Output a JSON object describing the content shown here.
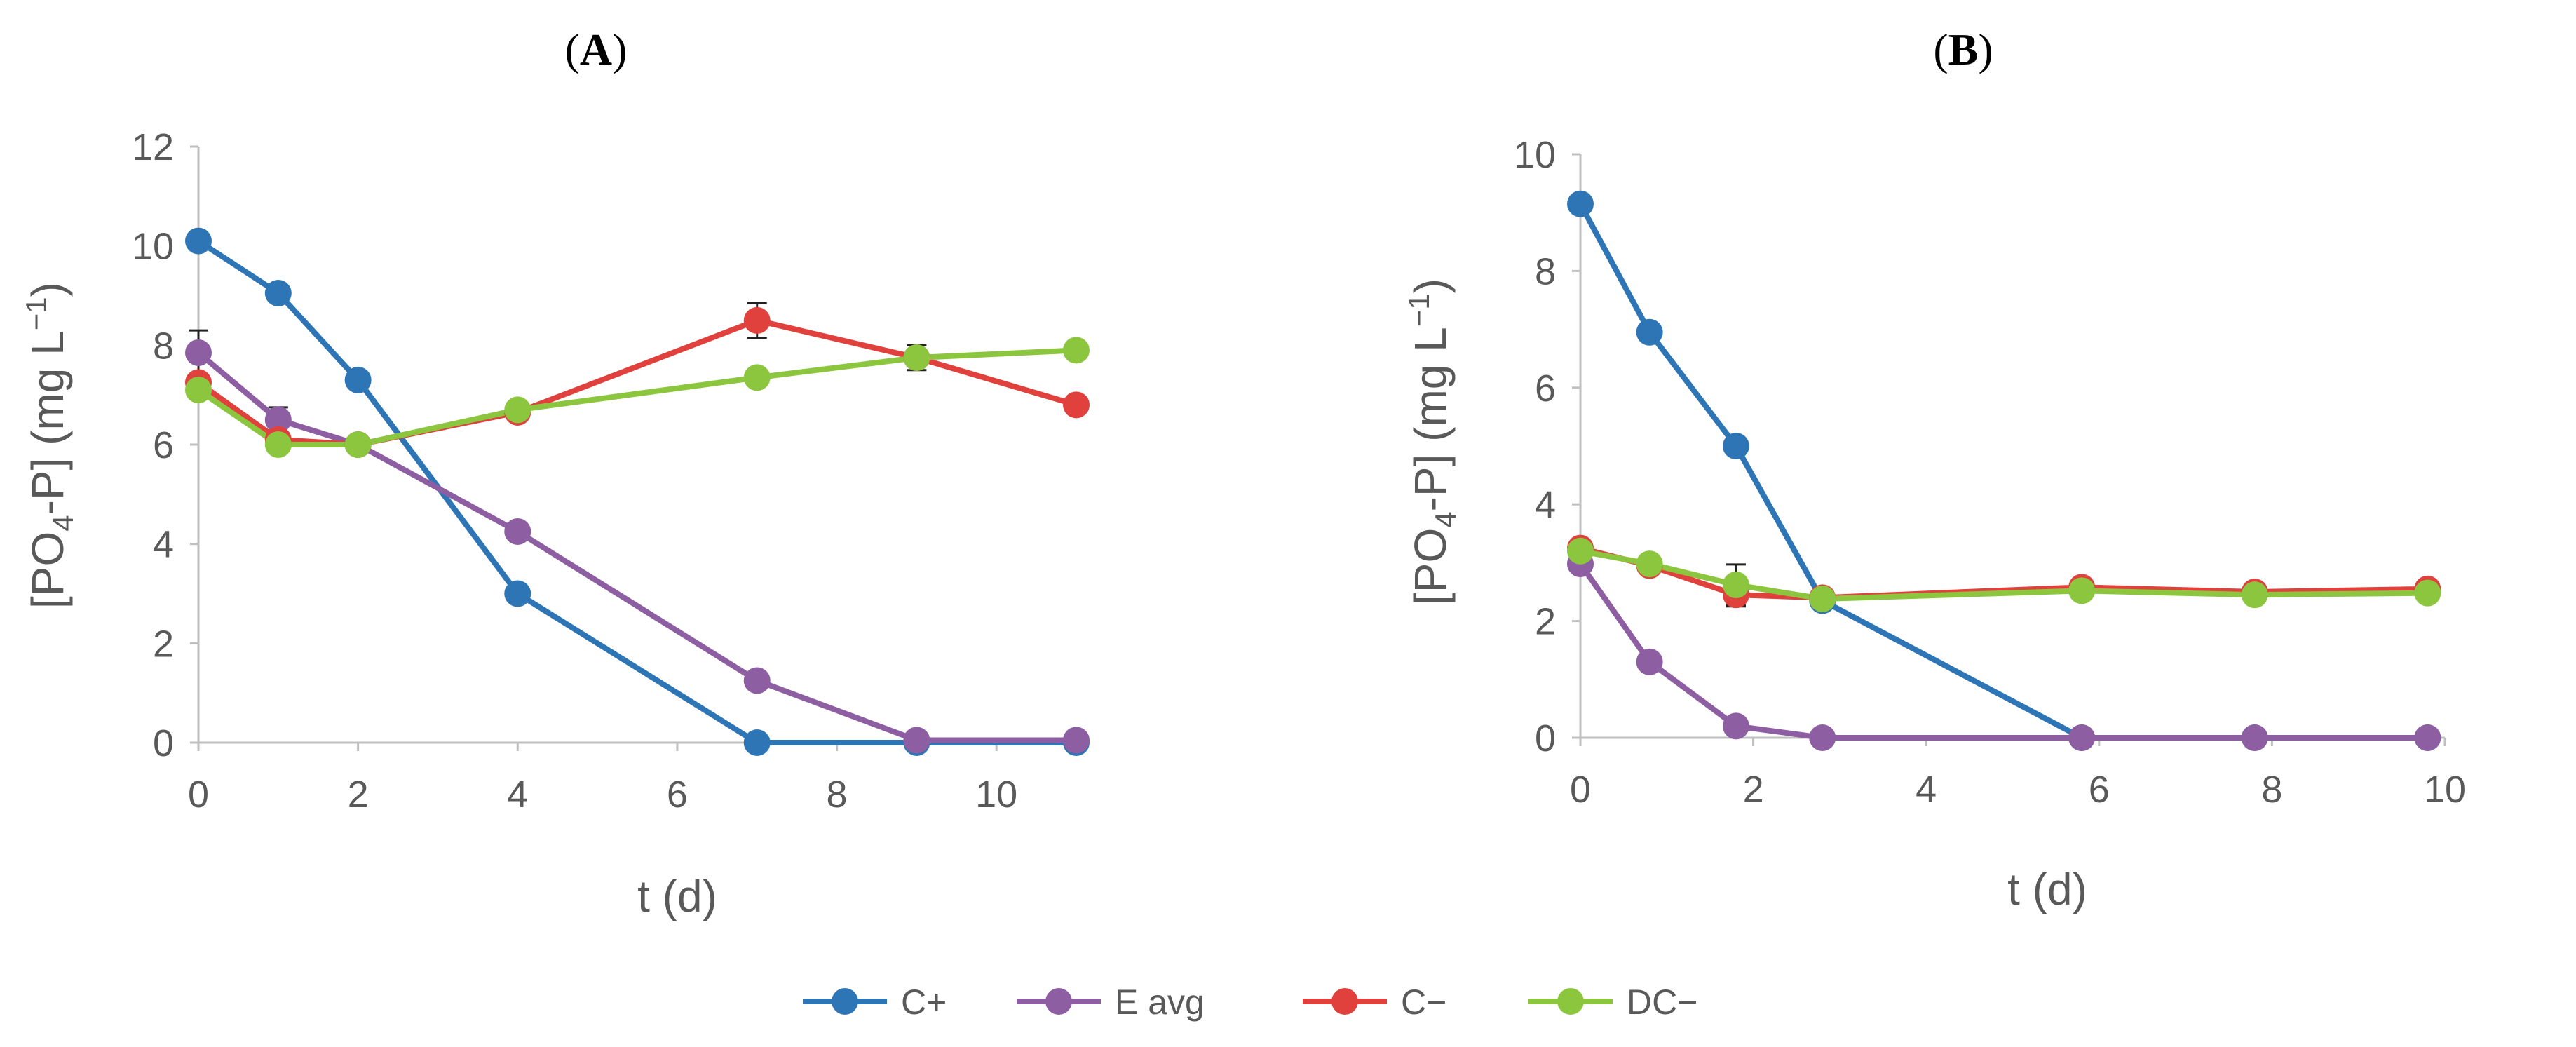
{
  "figure": {
    "legend": [
      {
        "key": "c_plus",
        "label": "C+",
        "color": "#2E75B6"
      },
      {
        "key": "e_avg",
        "label": "E avg",
        "color": "#8E5EA2"
      },
      {
        "key": "c_minus",
        "label": "C−",
        "color": "#E0413C"
      },
      {
        "key": "dc_minus",
        "label": "DC−",
        "color": "#8CC63F"
      }
    ]
  },
  "chart_data": [
    {
      "type": "line",
      "panel_label": "A",
      "title": "(A)",
      "xlabel": "t (d)",
      "ylabel_main": "[PO",
      "ylabel_sub": "4",
      "ylabel_rest": "-P] (mg L",
      "ylabel_sup": "−1",
      "ylabel_end": ")",
      "xlim": [
        0,
        11
      ],
      "ylim": [
        0,
        12
      ],
      "xticks": [
        0,
        2,
        4,
        6,
        8,
        10
      ],
      "yticks": [
        0,
        2,
        4,
        6,
        8,
        10,
        12
      ],
      "grid": false,
      "series": [
        {
          "key": "c_plus",
          "name": "C+",
          "color": "#2E75B6",
          "x": [
            0,
            1,
            2,
            4,
            7,
            9,
            11
          ],
          "y": [
            10.1,
            9.05,
            7.3,
            3.0,
            0.0,
            0.0,
            0.0
          ],
          "err": [
            0.1,
            0.1,
            0,
            0,
            0,
            0,
            0
          ]
        },
        {
          "key": "e_avg",
          "name": "E avg",
          "color": "#8E5EA2",
          "x": [
            0,
            1,
            2,
            4,
            7,
            9,
            11
          ],
          "y": [
            7.85,
            6.5,
            6.0,
            4.25,
            1.25,
            0.05,
            0.05
          ],
          "err": [
            0.45,
            0.25,
            0,
            0,
            0,
            0,
            0
          ]
        },
        {
          "key": "c_minus",
          "name": "C−",
          "color": "#E0413C",
          "x": [
            0,
            1,
            2,
            4,
            7,
            9,
            11
          ],
          "y": [
            7.25,
            6.1,
            6.0,
            6.65,
            8.5,
            7.75,
            6.8
          ],
          "err": [
            0,
            0,
            0,
            0,
            0.35,
            0.25,
            0
          ]
        },
        {
          "key": "dc_minus",
          "name": "DC−",
          "color": "#8CC63F",
          "x": [
            0,
            1,
            2,
            4,
            7,
            9,
            11
          ],
          "y": [
            7.1,
            6.0,
            6.0,
            6.7,
            7.35,
            7.75,
            7.9
          ],
          "err": [
            0,
            0,
            0,
            0,
            0,
            0,
            0
          ]
        }
      ]
    },
    {
      "type": "line",
      "panel_label": "B",
      "title": "(B)",
      "xlabel": "t (d)",
      "ylabel_main": "[PO",
      "ylabel_sub": "4",
      "ylabel_rest": "-P] (mg L",
      "ylabel_sup": "−1",
      "ylabel_end": ")",
      "xlim": [
        0,
        10
      ],
      "ylim": [
        0,
        10
      ],
      "xticks": [
        0,
        2,
        4,
        6,
        8,
        10
      ],
      "yticks": [
        0,
        2,
        4,
        6,
        8,
        10
      ],
      "grid": false,
      "series": [
        {
          "key": "c_plus",
          "name": "C+",
          "color": "#2E75B6",
          "x": [
            0,
            0.8,
            1.8,
            2.8,
            5.8,
            7.8,
            9.8
          ],
          "y": [
            9.15,
            6.95,
            5.0,
            2.35,
            0.0,
            0.0,
            0.0
          ],
          "err": [
            0,
            0,
            0,
            0,
            0,
            0,
            0
          ]
        },
        {
          "key": "e_avg",
          "name": "E avg",
          "color": "#8E5EA2",
          "x": [
            0,
            0.8,
            1.8,
            2.8,
            5.8,
            7.8,
            9.8
          ],
          "y": [
            2.98,
            1.3,
            0.2,
            0.0,
            0.0,
            0.0,
            0.0
          ],
          "err": [
            0,
            0,
            0,
            0,
            0,
            0,
            0
          ]
        },
        {
          "key": "c_minus",
          "name": "C−",
          "color": "#E0413C",
          "x": [
            0,
            0.8,
            1.8,
            2.8,
            5.8,
            7.8,
            9.8
          ],
          "y": [
            3.25,
            2.95,
            2.45,
            2.4,
            2.58,
            2.5,
            2.55
          ],
          "err": [
            0,
            0,
            0.2,
            0,
            0,
            0,
            0
          ]
        },
        {
          "key": "dc_minus",
          "name": "DC−",
          "color": "#8CC63F",
          "x": [
            0,
            0.8,
            1.8,
            2.8,
            5.8,
            7.8,
            9.8
          ],
          "y": [
            3.2,
            2.98,
            2.62,
            2.38,
            2.52,
            2.45,
            2.48
          ],
          "err": [
            0,
            0,
            0.35,
            0,
            0,
            0,
            0
          ]
        }
      ]
    }
  ]
}
